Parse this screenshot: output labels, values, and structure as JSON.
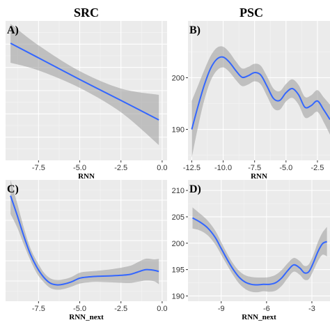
{
  "col_titles": [
    "SRC",
    "PSC"
  ],
  "chart_data": [
    {
      "type": "line",
      "panel": "A)",
      "column": "SRC",
      "xlabel": "RNN",
      "ylabel": "",
      "xlim": [
        -9.5,
        0.3
      ],
      "ylim": [
        0,
        10
      ],
      "x_ticks": [
        -7.5,
        -5.0,
        -2.5,
        0.0
      ],
      "x_tick_labels": [
        "-7.5",
        "-5.0",
        "-2.5",
        "0.0"
      ],
      "y_ticks": [],
      "y_tick_labels": [],
      "grid": true,
      "band": true,
      "series": [
        {
          "x": [
            -9.2,
            -7.5,
            -5.0,
            -2.5,
            -0.2
          ],
          "y": [
            8.4,
            7.35,
            5.8,
            4.3,
            2.9
          ],
          "lower": [
            7.0,
            6.45,
            5.2,
            3.45,
            1.1
          ],
          "upper": [
            9.8,
            8.25,
            6.4,
            5.15,
            4.7
          ]
        }
      ]
    },
    {
      "type": "line",
      "panel": "B)",
      "column": "PSC",
      "xlabel": "RNN",
      "ylabel": "",
      "xlim": [
        -12.8,
        -1.5
      ],
      "ylim": [
        184,
        211
      ],
      "x_ticks": [
        -12.5,
        -10.0,
        -7.5,
        -5.0,
        -2.5
      ],
      "x_tick_labels": [
        "-12.5",
        "-10.0",
        "-7.5",
        "-5.0",
        "-2.5"
      ],
      "y_ticks": [
        190,
        200
      ],
      "y_tick_labels": [
        "190",
        "200"
      ],
      "grid": true,
      "band": true,
      "series": [
        {
          "x": [
            -12.5,
            -12.0,
            -11.5,
            -11.0,
            -10.5,
            -10.0,
            -9.5,
            -9.0,
            -8.5,
            -8.0,
            -7.5,
            -7.0,
            -6.5,
            -6.0,
            -5.5,
            -5.0,
            -4.5,
            -4.0,
            -3.5,
            -3.0,
            -2.5,
            -2.0,
            -1.5
          ],
          "y": [
            190.0,
            194.5,
            198.6,
            201.8,
            203.6,
            204.0,
            203.0,
            201.4,
            200.1,
            200.4,
            201.0,
            200.5,
            198.3,
            196.0,
            195.6,
            197.1,
            197.9,
            196.7,
            194.3,
            194.6,
            195.5,
            193.8,
            191.9
          ],
          "lower": [
            184.5,
            190.5,
            195.7,
            199.4,
            201.4,
            202.0,
            201.1,
            199.6,
            198.4,
            198.7,
            199.3,
            198.7,
            196.4,
            194.1,
            193.8,
            195.4,
            196.1,
            194.8,
            192.3,
            192.6,
            193.4,
            191.4,
            189.0
          ],
          "upper": [
            195.5,
            198.5,
            201.5,
            204.2,
            205.8,
            206.0,
            204.9,
            203.2,
            201.8,
            202.1,
            202.7,
            202.3,
            200.2,
            197.9,
            197.4,
            198.8,
            199.7,
            198.6,
            196.3,
            196.6,
            197.6,
            196.2,
            194.8
          ]
        }
      ]
    },
    {
      "type": "line",
      "panel": "C)",
      "column": "SRC",
      "xlabel": "RNN_next",
      "ylabel": "",
      "xlim": [
        -9.5,
        0.3
      ],
      "ylim": [
        0,
        10
      ],
      "x_ticks": [
        -7.5,
        -5.0,
        -2.5,
        0.0
      ],
      "x_tick_labels": [
        "-7.5",
        "-5.0",
        "-2.5",
        "0.0"
      ],
      "y_ticks": [],
      "y_tick_labels": [],
      "grid": true,
      "band": true,
      "series": [
        {
          "x": [
            -9.2,
            -8.8,
            -8.4,
            -8.0,
            -7.6,
            -7.2,
            -6.8,
            -6.4,
            -6.0,
            -5.5,
            -5.0,
            -4.5,
            -4.0,
            -3.0,
            -2.0,
            -1.5,
            -1.0,
            -0.5,
            -0.2
          ],
          "y": [
            8.7,
            7.1,
            5.4,
            3.9,
            2.8,
            2.0,
            1.5,
            1.35,
            1.4,
            1.6,
            1.9,
            2.0,
            2.05,
            2.1,
            2.2,
            2.4,
            2.6,
            2.55,
            2.45
          ],
          "lower": [
            7.2,
            6.1,
            4.7,
            3.4,
            2.3,
            1.6,
            1.1,
            0.95,
            1.0,
            1.2,
            1.45,
            1.55,
            1.6,
            1.55,
            1.5,
            1.6,
            1.7,
            1.65,
            1.4
          ],
          "upper": [
            10.0,
            8.1,
            6.1,
            4.4,
            3.3,
            2.4,
            1.9,
            1.75,
            1.8,
            2.0,
            2.35,
            2.45,
            2.5,
            2.65,
            2.9,
            3.2,
            3.5,
            3.45,
            3.5
          ]
        }
      ]
    },
    {
      "type": "line",
      "panel": "D)",
      "column": "PSC",
      "xlabel": "RNN_next",
      "ylabel": "",
      "xlim": [
        -11.2,
        -1.8
      ],
      "ylim": [
        189,
        212
      ],
      "x_ticks": [
        -9,
        -6,
        -3
      ],
      "x_tick_labels": [
        "-9",
        "-6",
        "-3"
      ],
      "y_ticks": [
        190,
        195,
        200,
        205,
        210
      ],
      "y_tick_labels": [
        "190",
        "195",
        "200",
        "205",
        "210"
      ],
      "grid": true,
      "band": true,
      "series": [
        {
          "x": [
            -10.9,
            -10.4,
            -9.9,
            -9.4,
            -9.0,
            -8.6,
            -8.2,
            -7.8,
            -7.4,
            -7.0,
            -6.6,
            -6.2,
            -5.8,
            -5.4,
            -5.0,
            -4.6,
            -4.2,
            -3.8,
            -3.5,
            -3.2,
            -2.9,
            -2.6,
            -2.3,
            -2.0
          ],
          "y": [
            204.8,
            204.0,
            202.9,
            201.1,
            199.0,
            196.9,
            195.0,
            193.5,
            192.6,
            192.2,
            192.1,
            192.2,
            192.2,
            192.5,
            193.4,
            194.8,
            195.9,
            195.3,
            194.4,
            194.6,
            196.3,
            198.4,
            199.9,
            200.3
          ],
          "lower": [
            202.8,
            202.4,
            201.5,
            199.8,
            197.8,
            195.8,
            193.9,
            192.3,
            191.3,
            190.8,
            190.7,
            190.9,
            190.8,
            191.0,
            191.9,
            193.4,
            194.6,
            194.0,
            193.1,
            193.2,
            194.8,
            196.6,
            197.8,
            197.5
          ],
          "upper": [
            206.8,
            205.6,
            204.3,
            202.4,
            200.2,
            198.0,
            196.1,
            194.7,
            193.9,
            193.6,
            193.5,
            193.5,
            193.6,
            194.0,
            194.9,
            196.2,
            197.2,
            196.6,
            195.7,
            196.0,
            197.8,
            200.2,
            202.0,
            203.1
          ]
        }
      ]
    }
  ]
}
